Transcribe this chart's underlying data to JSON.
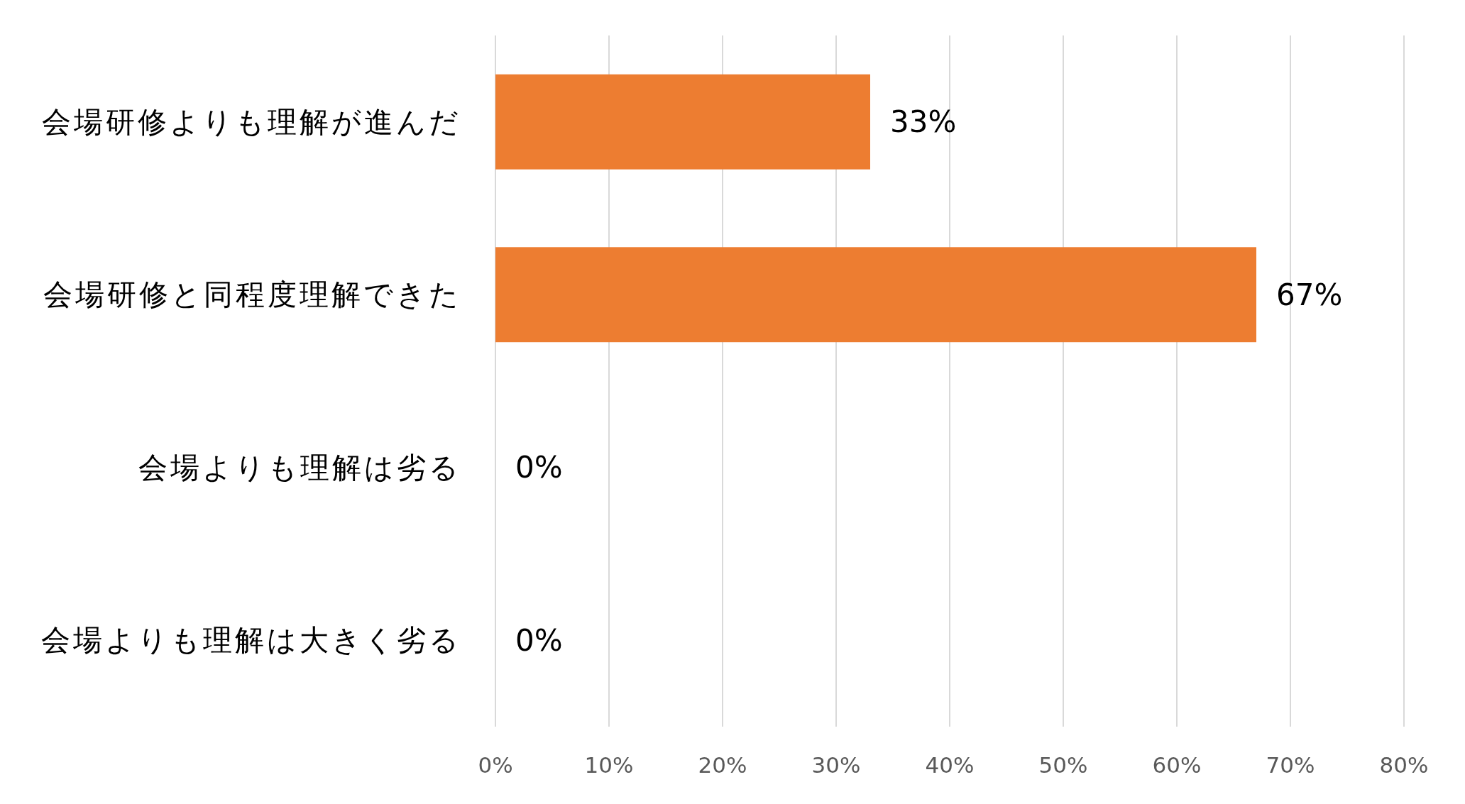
{
  "chart_data": {
    "type": "bar",
    "orientation": "horizontal",
    "categories": [
      "会場研修よりも理解が進んだ",
      "会場研修と同程度理解できた",
      "会場よりも理解は劣る",
      "会場よりも理解は大きく劣る"
    ],
    "values": [
      33,
      67,
      0,
      0
    ],
    "value_labels": [
      "33%",
      "67%",
      "0%",
      "0%"
    ],
    "color": "#ed7d31",
    "xlim": [
      0,
      80
    ],
    "xticks": [
      {
        "value": 0,
        "label": "0%"
      },
      {
        "value": 10,
        "label": "10%"
      },
      {
        "value": 20,
        "label": "20%"
      },
      {
        "value": 30,
        "label": "30%"
      },
      {
        "value": 40,
        "label": "40%"
      },
      {
        "value": 50,
        "label": "50%"
      },
      {
        "value": 60,
        "label": "60%"
      },
      {
        "value": 70,
        "label": "70%"
      },
      {
        "value": 80,
        "label": "80%"
      }
    ],
    "grid": "x"
  }
}
